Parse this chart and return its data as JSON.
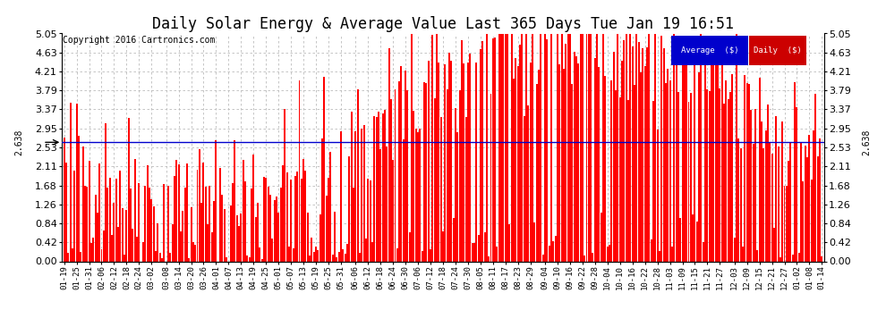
{
  "title": "Daily Solar Energy & Average Value Last 365 Days Tue Jan 19 16:51",
  "copyright": "Copyright 2016 Cartronics.com",
  "bar_color": "#ff0000",
  "average_line_color": "#0000cd",
  "average_value": 2.638,
  "ylim": [
    0.0,
    5.05
  ],
  "yticks": [
    0.0,
    0.42,
    0.84,
    1.26,
    1.68,
    2.11,
    2.53,
    2.95,
    3.37,
    3.79,
    4.21,
    4.63,
    5.05
  ],
  "background_color": "#ffffff",
  "grid_color": "#bbbbbb",
  "title_fontsize": 12,
  "legend_avg_color": "#0000cc",
  "legend_daily_color": "#cc0000",
  "x_labels": [
    "01-19",
    "01-25",
    "01-31",
    "02-06",
    "02-12",
    "02-18",
    "02-24",
    "03-02",
    "03-08",
    "03-14",
    "03-20",
    "03-26",
    "04-01",
    "04-07",
    "04-13",
    "04-19",
    "04-25",
    "05-01",
    "05-07",
    "05-13",
    "05-19",
    "05-25",
    "05-31",
    "06-06",
    "06-12",
    "06-18",
    "06-24",
    "06-30",
    "07-06",
    "07-12",
    "07-18",
    "07-24",
    "07-30",
    "08-05",
    "08-11",
    "08-17",
    "08-23",
    "08-29",
    "09-04",
    "09-10",
    "09-16",
    "09-22",
    "09-28",
    "10-04",
    "10-10",
    "10-16",
    "10-22",
    "10-28",
    "11-03",
    "11-09",
    "11-15",
    "11-21",
    "11-27",
    "12-03",
    "12-09",
    "12-15",
    "12-21",
    "12-27",
    "01-02",
    "01-08",
    "01-14"
  ],
  "seed": 42
}
